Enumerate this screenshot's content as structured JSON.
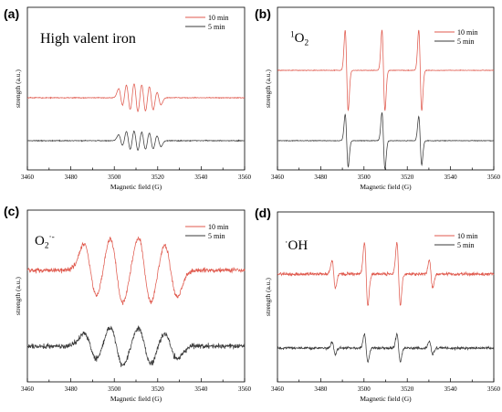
{
  "chart_data": [
    {
      "type": "line",
      "panel": "(a)",
      "title": "High valent iron",
      "xlabel": "Magnetic field (G)",
      "ylabel": "strength (a.u.)",
      "xlim": [
        3460,
        3560
      ],
      "xticks": [
        "3460",
        "3480",
        "3500",
        "3520",
        "3540",
        "3560"
      ],
      "legend_position": "top-right",
      "series": [
        {
          "name": "10 min",
          "color": "#e05a4e",
          "noise": 0.02,
          "lines": [
            {
              "x": 3503,
              "amp": 0.45,
              "w": 1.0
            },
            {
              "x": 3506.5,
              "amp": 0.7,
              "w": 1.0
            },
            {
              "x": 3510,
              "amp": 0.8,
              "w": 1.0
            },
            {
              "x": 3513.5,
              "amp": 0.75,
              "w": 1.0
            },
            {
              "x": 3517,
              "amp": 0.65,
              "w": 1.0
            },
            {
              "x": 3520.5,
              "amp": 0.35,
              "w": 1.0
            }
          ]
        },
        {
          "name": "5 min",
          "color": "#3a3a3a",
          "noise": 0.02,
          "lines": [
            {
              "x": 3503,
              "amp": 0.3,
              "w": 1.0
            },
            {
              "x": 3506.5,
              "amp": 0.5,
              "w": 1.0
            },
            {
              "x": 3510,
              "amp": 0.55,
              "w": 1.0
            },
            {
              "x": 3513.5,
              "amp": 0.5,
              "w": 1.0
            },
            {
              "x": 3517,
              "amp": 0.45,
              "w": 1.0
            },
            {
              "x": 3520.5,
              "amp": 0.3,
              "w": 1.0
            }
          ]
        }
      ]
    },
    {
      "type": "line",
      "panel": "(b)",
      "title": "1O2",
      "title_sup": "1",
      "title_main": "O",
      "title_sub": "2",
      "xlabel": "Magnetic field (G)",
      "ylabel": "strength (a.u.)",
      "xlim": [
        3460,
        3560
      ],
      "xticks": [
        "3460",
        "3480",
        "3500",
        "3520",
        "3540",
        "3560"
      ],
      "legend_position": "top-right",
      "series": [
        {
          "name": "10 min",
          "color": "#e05a4e",
          "noise": 0.008,
          "lines": [
            {
              "x": 3492,
              "amp": 1.0,
              "w": 0.7
            },
            {
              "x": 3509,
              "amp": 1.0,
              "w": 0.7
            },
            {
              "x": 3526,
              "amp": 1.0,
              "w": 0.7
            }
          ]
        },
        {
          "name": "5 min",
          "color": "#3a3a3a",
          "noise": 0.008,
          "lines": [
            {
              "x": 3492,
              "amp": 0.65,
              "w": 0.7
            },
            {
              "x": 3509,
              "amp": 0.7,
              "w": 0.7
            },
            {
              "x": 3526,
              "amp": 0.6,
              "w": 0.7
            }
          ]
        }
      ]
    },
    {
      "type": "line",
      "panel": "(c)",
      "title": "O2·-",
      "title_main": "O",
      "title_sub": "2",
      "title_sup": "·-",
      "xlabel": "Magnetic field (G)",
      "ylabel": "strength (a.u.)",
      "xlim": [
        3460,
        3560
      ],
      "xticks": [
        "3460",
        "3480",
        "3500",
        "3520",
        "3540",
        "3560"
      ],
      "legend_position": "top-right",
      "series": [
        {
          "name": "10 min",
          "color": "#e05a4e",
          "noise": 0.07,
          "lines": [
            {
              "x": 3489,
              "amp": 0.8,
              "w": 3.0
            },
            {
              "x": 3501,
              "amp": 1.0,
              "w": 3.0
            },
            {
              "x": 3514,
              "amp": 1.0,
              "w": 3.0
            },
            {
              "x": 3526,
              "amp": 0.8,
              "w": 3.0
            }
          ]
        },
        {
          "name": "5 min",
          "color": "#3a3a3a",
          "noise": 0.08,
          "lines": [
            {
              "x": 3489,
              "amp": 0.4,
              "w": 3.0
            },
            {
              "x": 3501,
              "amp": 0.6,
              "w": 3.0
            },
            {
              "x": 3514,
              "amp": 0.55,
              "w": 3.0
            },
            {
              "x": 3526,
              "amp": 0.4,
              "w": 3.0
            }
          ]
        }
      ]
    },
    {
      "type": "line",
      "panel": "(d)",
      "title": "·OH",
      "title_sup": "·",
      "title_main": "OH",
      "xlabel": "Magnetic field (G)",
      "ylabel": "strength (a.u.)",
      "xlim": [
        3460,
        3560
      ],
      "xticks": [
        "3460",
        "3480",
        "3500",
        "3520",
        "3540",
        "3560"
      ],
      "legend_position": "top-right",
      "series": [
        {
          "name": "10 min",
          "color": "#e05a4e",
          "noise": 0.05,
          "lines": [
            {
              "x": 3486,
              "amp": 0.45,
              "w": 0.8
            },
            {
              "x": 3501,
              "amp": 1.0,
              "w": 0.8
            },
            {
              "x": 3516,
              "amp": 1.0,
              "w": 0.8
            },
            {
              "x": 3531,
              "amp": 0.45,
              "w": 0.8
            }
          ]
        },
        {
          "name": "5 min",
          "color": "#3a3a3a",
          "noise": 0.04,
          "lines": [
            {
              "x": 3486,
              "amp": 0.2,
              "w": 0.8
            },
            {
              "x": 3501,
              "amp": 0.45,
              "w": 0.8
            },
            {
              "x": 3516,
              "amp": 0.45,
              "w": 0.8
            },
            {
              "x": 3531,
              "amp": 0.2,
              "w": 0.8
            }
          ]
        }
      ]
    }
  ]
}
